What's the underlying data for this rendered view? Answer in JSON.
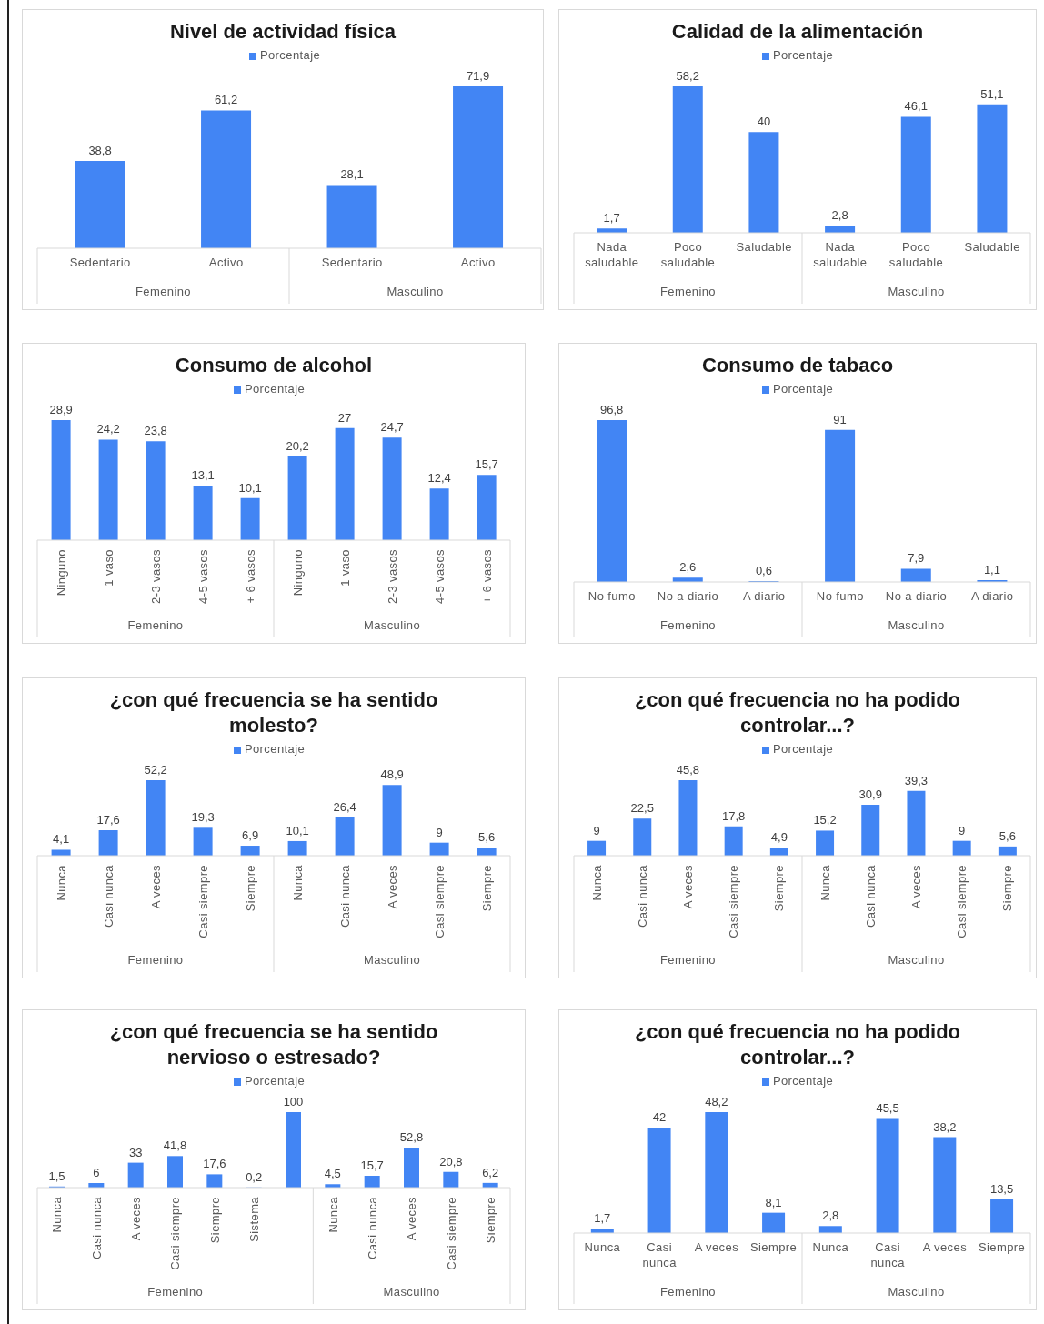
{
  "chart_data": [
    {
      "type": "bar",
      "title": "Nivel de actividad física",
      "categories": [
        "Sedentario",
        "Activo",
        "Sedentario",
        "Activo"
      ],
      "series": [
        {
          "name": "Porcentaje",
          "color": "#4285f4",
          "values": [
            38.8,
            61.2,
            28.1,
            71.9
          ],
          "value_labels": [
            "38,8",
            "61,2",
            "28,1",
            "71,9"
          ]
        }
      ],
      "legend": "top",
      "annotations": [
        "Femenino",
        "Masculino"
      ]
    },
    {
      "type": "bar",
      "title": "Calidad de la alimentación",
      "categories": [
        "Nada saludable",
        "Poco saludable",
        "Saludable",
        "Nada saludable",
        "Poco saludable",
        "Saludable"
      ],
      "series": [
        {
          "name": "Porcentaje",
          "color": "#4285f4",
          "values": [
            1.7,
            58.2,
            40,
            2.8,
            46.1,
            51.1
          ],
          "value_labels": [
            "1,7",
            "58,2",
            "40",
            "2,8",
            "46,1",
            "51,1"
          ]
        }
      ],
      "legend": "top",
      "annotations": [
        "Femenino",
        "Masculino"
      ]
    },
    {
      "type": "bar",
      "title": "Consumo de alcohol",
      "categories": [
        "Ninguno",
        "1 vaso",
        "2-3 vasos",
        "4-5 vasos",
        "+ 6 vasos",
        "Ninguno",
        "1 vaso",
        "2-3 vasos",
        "4-5 vasos",
        "+ 6 vasos"
      ],
      "series": [
        {
          "name": "Porcentaje",
          "color": "#4285f4",
          "values": [
            28.9,
            24.2,
            23.8,
            13.1,
            10.1,
            20.2,
            27,
            24.7,
            12.4,
            15.7
          ],
          "value_labels": [
            "28,9",
            "24,2",
            "23,8",
            "13,1",
            "10,1",
            "20,2",
            "27",
            "24,7",
            "12,4",
            "15,7"
          ]
        }
      ],
      "legend": "top",
      "annotations": [
        "Femenino",
        "Masculino"
      ]
    },
    {
      "type": "bar",
      "title": "Consumo de tabaco",
      "categories": [
        "No fumo",
        "No a diario",
        "A diario",
        "No fumo",
        "No a diario",
        "A diario"
      ],
      "series": [
        {
          "name": "Porcentaje",
          "color": "#4285f4",
          "values": [
            96.8,
            2.6,
            0.6,
            91,
            7.9,
            1.1
          ],
          "value_labels": [
            "96,8",
            "2,6",
            "0,6",
            "91",
            "7,9",
            "1,1"
          ]
        }
      ],
      "legend": "top",
      "annotations": [
        "Femenino",
        "Masculino"
      ]
    },
    {
      "type": "bar",
      "title": "¿con qué frecuencia se ha sentido molesto?",
      "categories": [
        "Nunca",
        "Casi nunca",
        "A veces",
        "Casi siempre",
        "Siempre",
        "Nunca",
        "Casi nunca",
        "A veces",
        "Casi siempre",
        "Siempre"
      ],
      "series": [
        {
          "name": "Porcentaje",
          "color": "#4285f4",
          "values": [
            4.1,
            17.6,
            52.2,
            19.3,
            6.9,
            10.1,
            26.4,
            48.9,
            9,
            5.6
          ],
          "value_labels": [
            "4,1",
            "17,6",
            "52,2",
            "19,3",
            "6,9",
            "10,1",
            "26,4",
            "48,9",
            "9",
            "5,6"
          ]
        }
      ],
      "legend": "top",
      "annotations": [
        "Femenino",
        "Masculino"
      ]
    },
    {
      "type": "bar",
      "title": "¿con qué frecuencia no ha podido controlar...?",
      "categories": [
        "Nunca",
        "Casi nunca",
        "A veces",
        "Casi siempre",
        "Siempre",
        "Nunca",
        "Casi nunca",
        "A veces",
        "Casi siempre",
        "Siempre"
      ],
      "series": [
        {
          "name": "Porcentaje",
          "color": "#4285f4",
          "values": [
            9,
            22.5,
            45.8,
            17.8,
            4.9,
            15.2,
            30.9,
            39.3,
            9,
            5.6
          ],
          "value_labels": [
            "9",
            "22,5",
            "45,8",
            "17,8",
            "4,9",
            "15,2",
            "30,9",
            "39,3",
            "9",
            "5,6"
          ]
        }
      ],
      "legend": "top",
      "annotations": [
        "Femenino",
        "Masculino"
      ]
    },
    {
      "type": "bar",
      "title": "¿con qué frecuencia se ha sentido nervioso o estresado?",
      "categories": [
        "Nunca",
        "Casi nunca",
        "A veces",
        "Casi siempre",
        "Siempre",
        "Sistema",
        null,
        "Nunca",
        "Casi nunca",
        "A veces",
        "Casi siempre",
        "Siempre"
      ],
      "series": [
        {
          "name": "Porcentaje",
          "color": "#4285f4",
          "values": [
            1.5,
            6,
            33,
            41.8,
            17.6,
            0.2,
            100,
            4.5,
            15.7,
            52.8,
            20.8,
            6.2
          ],
          "value_labels": [
            "1,5",
            "6",
            "33",
            "41,8",
            "17,6",
            "0,2",
            "100",
            "4,5",
            "15,7",
            "52,8",
            "20,8",
            "6,2"
          ]
        }
      ],
      "legend": "top",
      "annotations": [
        "Femenino",
        "Masculino"
      ]
    },
    {
      "type": "bar",
      "title": "¿con qué frecuencia no ha podido controlar...?",
      "categories": [
        "Nunca",
        "Casi nunca",
        "A veces",
        "Siempre",
        "Nunca",
        "Casi nunca",
        "A veces",
        "Siempre"
      ],
      "series": [
        {
          "name": "Porcentaje",
          "color": "#4285f4",
          "values": [
            1.7,
            42,
            48.2,
            8.1,
            2.8,
            45.5,
            38.2,
            13.5
          ],
          "value_labels": [
            "1,7",
            "42",
            "48,2",
            "8,1",
            "2,8",
            "45,5",
            "38,2",
            "13,5"
          ]
        }
      ],
      "legend": "top",
      "annotations": [
        "Femenino",
        "Masculino"
      ]
    }
  ]
}
